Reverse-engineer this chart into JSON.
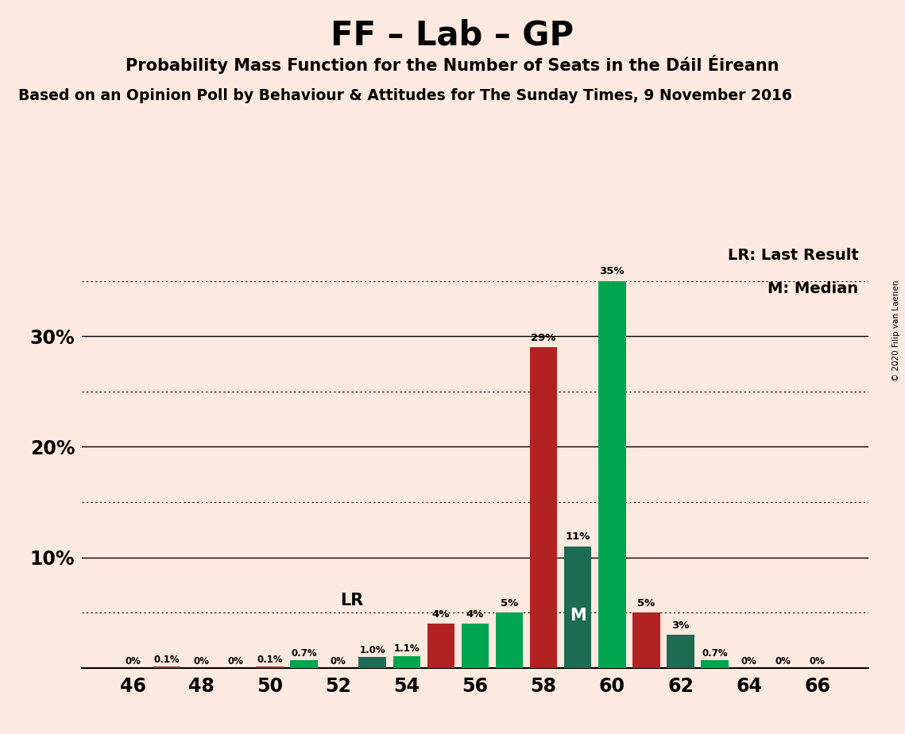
{
  "title": "FF – Lab – GP",
  "subtitle": "Probability Mass Function for the Number of Seats in the Dáil Éireann",
  "source_line": "Based on an Opinion Poll by Behaviour & Attitudes for The Sunday Times, 9 November 2016",
  "copyright": "© 2020 Filip van Laenen",
  "legend_lr": "LR: Last Result",
  "legend_m": "M: Median",
  "background_color": "#fce9e0",
  "seats": [
    46,
    47,
    48,
    49,
    50,
    51,
    52,
    53,
    54,
    55,
    56,
    57,
    58,
    59,
    60,
    61,
    62,
    63,
    64,
    65,
    66
  ],
  "values": [
    0.0,
    0.1,
    0.0,
    0.0,
    0.1,
    0.7,
    0.0,
    1.0,
    1.1,
    4.0,
    4.0,
    5.0,
    29.0,
    11.0,
    35.0,
    5.0,
    3.0,
    0.7,
    0.0,
    0.0,
    0.0
  ],
  "colors": [
    "#00a550",
    "#b22222",
    "#00a550",
    "#00a550",
    "#b22222",
    "#00a550",
    "#1d6b52",
    "#1d6b52",
    "#00a550",
    "#b22222",
    "#00a550",
    "#00a550",
    "#b22222",
    "#1d6b52",
    "#00a550",
    "#b22222",
    "#1d6b52",
    "#00a550",
    "#00a550",
    "#00a550",
    "#00a550"
  ],
  "labels": [
    "0%",
    "0.1%",
    "0%",
    "0%",
    "0.1%",
    "0.7%",
    "0%",
    "1.0%",
    "1.1%",
    "4%",
    "4%",
    "5%",
    "29%",
    "11%",
    "35%",
    "5%",
    "3%",
    "0.7%",
    "0%",
    "0%",
    "0%"
  ],
  "show_label": [
    true,
    true,
    true,
    true,
    true,
    true,
    true,
    true,
    true,
    true,
    true,
    true,
    true,
    true,
    true,
    true,
    true,
    true,
    true,
    true,
    true
  ],
  "LR_seat": 53,
  "M_seat": 59,
  "bar_width": 0.8,
  "ylim": [
    0,
    38.5
  ],
  "solid_grid": [
    10,
    20,
    30
  ],
  "dotted_grid": [
    5,
    15,
    25,
    35
  ],
  "ytick_vals": [
    10,
    20,
    30
  ],
  "ytick_labels": [
    "10%",
    "20%",
    "30%"
  ],
  "xtick_vals": [
    46,
    48,
    50,
    52,
    54,
    56,
    58,
    60,
    62,
    64,
    66
  ],
  "xlim": [
    44.5,
    67.5
  ]
}
